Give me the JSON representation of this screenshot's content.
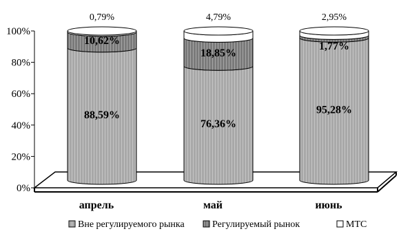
{
  "chart_data": {
    "type": "bar",
    "stacked": true,
    "percent_stacked": true,
    "three_d": "cylinder",
    "categories": [
      "апрель",
      "май",
      "июнь"
    ],
    "ylim": [
      0,
      100
    ],
    "yticks": [
      "0%",
      "20%",
      "40%",
      "60%",
      "80%",
      "100%"
    ],
    "series": [
      {
        "name": "Вне регулируемого рынка",
        "values": [
          88.59,
          76.36,
          95.28
        ],
        "labels": [
          "88,59%",
          "76,36%",
          "95,28%"
        ],
        "color": "#a8a8a8"
      },
      {
        "name": "Регулируемый рынок",
        "values": [
          10.62,
          18.85,
          1.77
        ],
        "labels": [
          "10,62%",
          "18,85%",
          "1,77%"
        ],
        "color": "#7a7a7a"
      },
      {
        "name": "МТС",
        "values": [
          0.79,
          4.79,
          2.95
        ],
        "labels": [
          "0,79%",
          "4,79%",
          "2,95%"
        ],
        "color": "#ffffff"
      }
    ],
    "legend_position": "bottom",
    "grid": false
  }
}
